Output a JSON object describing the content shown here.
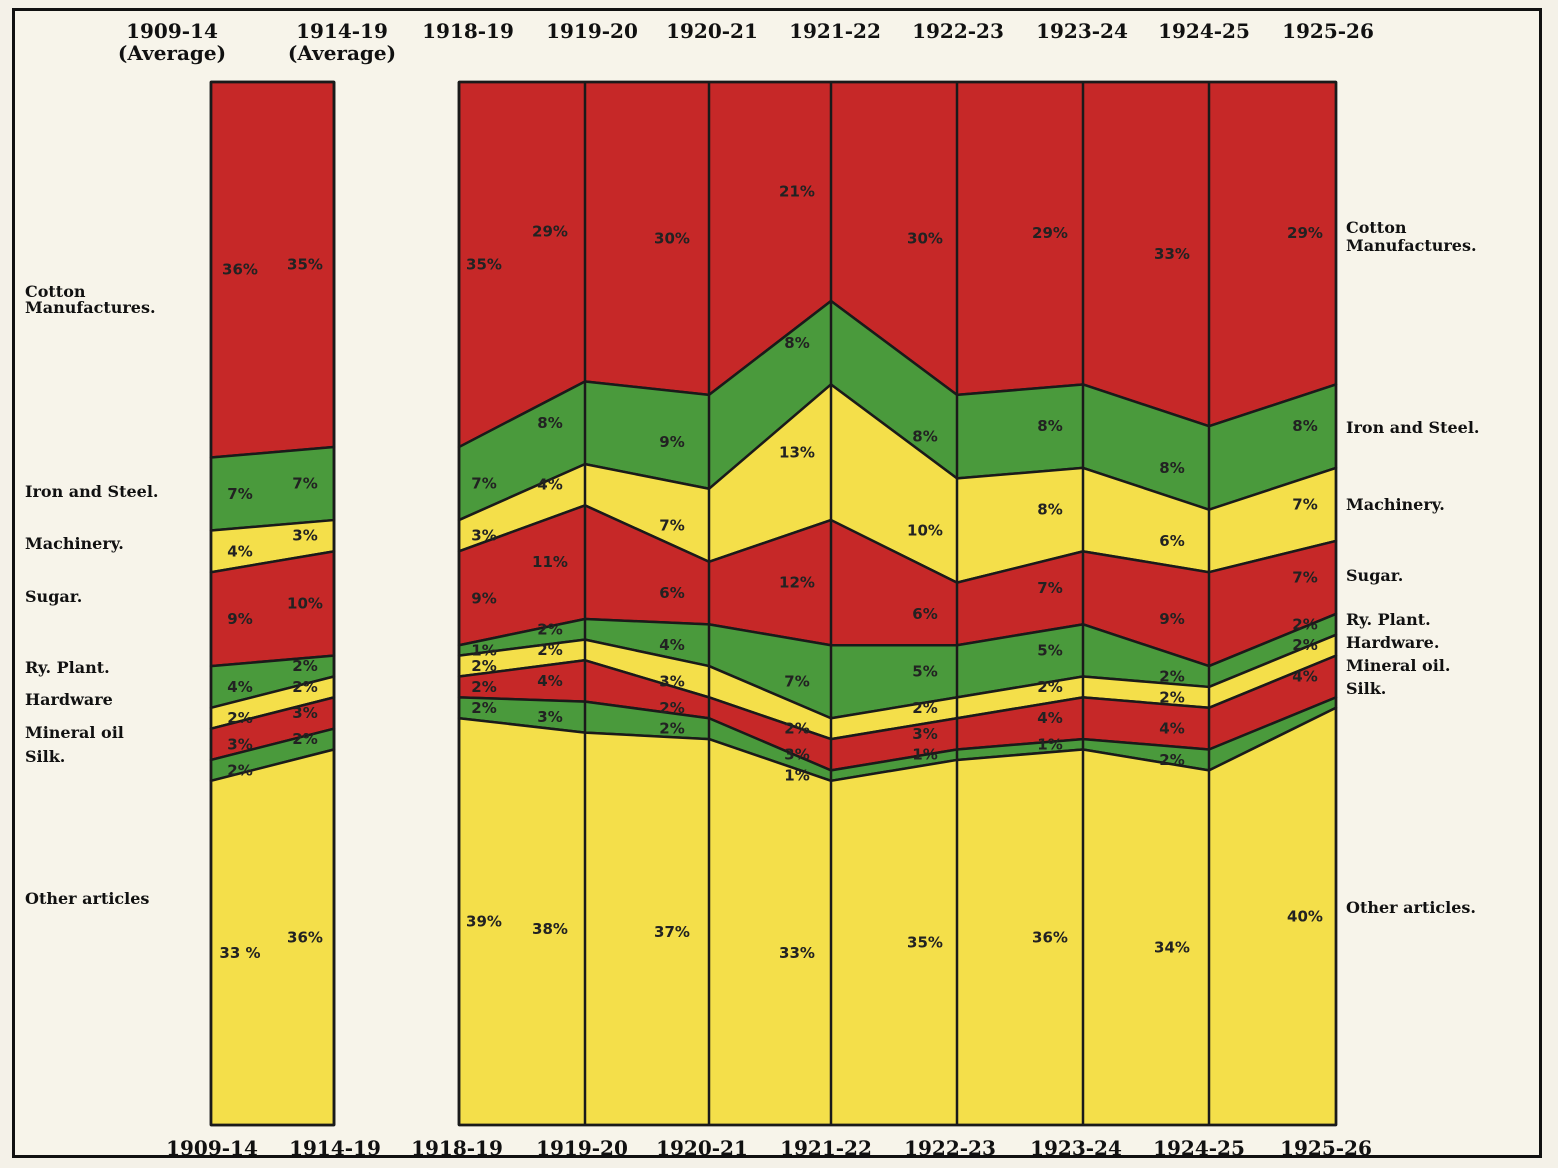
{
  "chart_data": {
    "type": "area",
    "title": "",
    "xlabel": "",
    "ylabel": "",
    "ylim": [
      0,
      100
    ],
    "categories": [
      "1909-14",
      "1914-19",
      "1918-19",
      "1919-20",
      "1920-21",
      "1921-22",
      "1922-23",
      "1923-24",
      "1924-25",
      "1925-26"
    ],
    "top_labels": [
      "1909-14",
      "1914-19",
      "1918-19",
      "1919-20",
      "1920-21",
      "1921-22",
      "1922-23",
      "1923-24",
      "1924-25",
      "1925-26"
    ],
    "top_sublabels": [
      "(Average)",
      "(Average)",
      "",
      "",
      "",
      "",
      "",
      "",
      "",
      ""
    ],
    "series": [
      {
        "name": "Cotton Manufactures.",
        "color": "#c62828",
        "values": [
          36,
          35,
          35,
          29,
          30,
          21,
          30,
          29,
          33,
          29
        ],
        "labels": [
          "36%",
          "35%",
          "35%",
          "29%",
          "30%",
          "21%",
          "30%",
          "29%",
          "33%",
          "29%"
        ]
      },
      {
        "name": "Iron and Steel.",
        "color": "#4a9a3c",
        "values": [
          7,
          7,
          7,
          8,
          9,
          8,
          8,
          8,
          8,
          8
        ],
        "labels": [
          "7%",
          "7%",
          "7%",
          "8%",
          "9%",
          "8%",
          "8%",
          "8%",
          "8%",
          "8%"
        ]
      },
      {
        "name": "Machinery.",
        "color": "#f4df4a",
        "values": [
          4,
          3,
          3,
          4,
          7,
          13,
          10,
          8,
          6,
          7
        ],
        "labels": [
          "4%",
          "3%",
          "3%",
          "4%",
          "7%",
          "13%",
          "10%",
          "8%",
          "6%",
          "7%"
        ]
      },
      {
        "name": "Sugar.",
        "color": "#c62828",
        "values": [
          9,
          10,
          9,
          11,
          6,
          12,
          6,
          7,
          9,
          7
        ],
        "labels": [
          "9%",
          "10%",
          "9%",
          "11%",
          "6%",
          "12%",
          "6%",
          "7%",
          "9%",
          "7%"
        ]
      },
      {
        "name": "Ry. Plant.",
        "color": "#4a9a3c",
        "values": [
          4,
          2,
          1,
          2,
          4,
          7,
          5,
          5,
          2,
          2
        ],
        "labels": [
          "4%",
          "2%",
          "1%",
          "2%",
          "4%",
          "7%",
          "5%",
          "5%",
          "2%",
          "2%"
        ]
      },
      {
        "name": "Hardware.",
        "color": "#f4df4a",
        "values": [
          2,
          2,
          2,
          2,
          3,
          2,
          2,
          2,
          2,
          2
        ],
        "labels": [
          "2%",
          "2%",
          "2%",
          "2%",
          "3%",
          "2%",
          "2%",
          "2%",
          "2%",
          "2%"
        ]
      },
      {
        "name": "Mineral oil.",
        "color": "#c62828",
        "values": [
          3,
          3,
          2,
          4,
          2,
          3,
          3,
          4,
          4,
          4
        ],
        "labels": [
          "3%",
          "3%",
          "2%",
          "4%",
          "2%",
          "3%",
          "3%",
          "4%",
          "4%",
          "4%"
        ]
      },
      {
        "name": "Silk.",
        "color": "#4a9a3c",
        "values": [
          2,
          2,
          2,
          3,
          2,
          1,
          1,
          1,
          2,
          1
        ],
        "labels": [
          "2%",
          "2%",
          "2%",
          "3%",
          "2%",
          "1%",
          "1%",
          "1%",
          "2%",
          ""
        ]
      },
      {
        "name": "Other articles.",
        "color": "#f4df4a",
        "values": [
          33,
          36,
          39,
          38,
          37,
          33,
          35,
          36,
          34,
          40
        ],
        "labels": [
          "33 %",
          "36%",
          "39%",
          "38%",
          "37%",
          "33%",
          "35%",
          "36%",
          "34%",
          "40%"
        ]
      }
    ],
    "left_legend": [
      "Cotton Manufactures.",
      "Iron and Steel.",
      "Machinery.",
      "Sugar.",
      "Ry. Plant.",
      "Hardware",
      "Mineral oil",
      "Silk.",
      "Other articles"
    ],
    "right_legend": [
      "Cotton Manufactures.",
      "Iron and Steel.",
      "Machinery.",
      "Sugar.",
      "Ry. Plant.",
      "Hardware.",
      "Mineral oil.",
      "Silk.",
      "Other articles."
    ]
  }
}
